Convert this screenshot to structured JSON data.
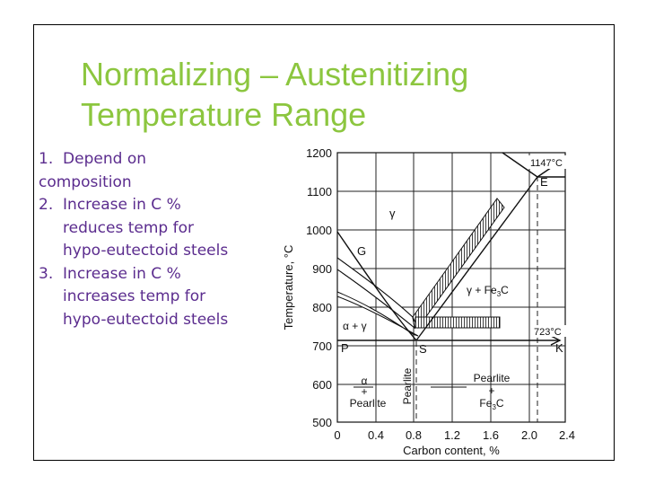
{
  "slide": {
    "title_line1": "Normalizing – Austenitizing",
    "title_line2": "Temperature Range",
    "bullets": [
      {
        "num": "1.",
        "lines": [
          "Depend on",
          "composition"
        ]
      },
      {
        "num": "2.",
        "lines": [
          "Increase in C %",
          "reduces temp for",
          "hypo-eutectoid steels"
        ]
      },
      {
        "num": "3.",
        "lines": [
          "Increase in C %",
          "increases temp for",
          "hypo-eutectoid steels"
        ]
      }
    ],
    "colors": {
      "title": "#8cc63f",
      "bullets": "#5b2c8e"
    }
  },
  "diagram": {
    "y_label": "Temperature, °C",
    "x_label": "Carbon content, %",
    "y_ticks": [
      "1200",
      "1100",
      "1000",
      "900",
      "800",
      "700",
      "600",
      "500"
    ],
    "x_ticks": [
      "0",
      "0.4",
      "0.8",
      "1.2",
      "1.6",
      "2.0",
      "2.4"
    ],
    "points": {
      "G": "G",
      "E": "E",
      "S": "S",
      "P": "P",
      "K": "K"
    },
    "temps": {
      "eutectic": "1147°C",
      "eutectoid": "723°C"
    },
    "regions": {
      "gamma": "γ",
      "alpha_gamma": "α + γ",
      "gamma_fe3c_prefix": "γ + Fe",
      "fe3c": "Fe",
      "sub3": "3",
      "c": "C",
      "alpha": "α",
      "plus": "+",
      "pearlite": "Pearlite"
    }
  }
}
